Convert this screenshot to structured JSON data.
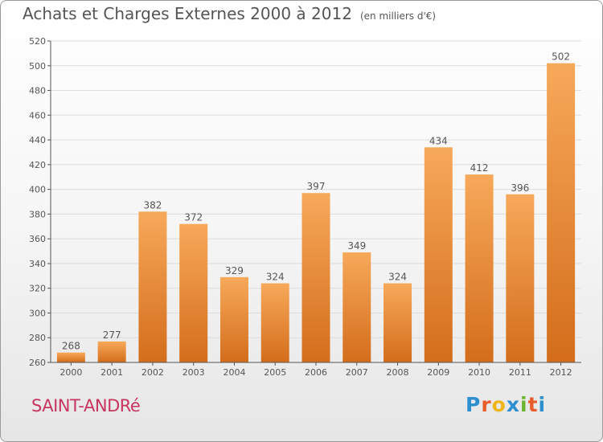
{
  "header": {
    "title": "Achats et Charges Externes 2000 à 2012",
    "unit": "(en milliers d'€)"
  },
  "footer": {
    "commune": "SAINT-ANDRé",
    "logo_text": "Proxiti",
    "logo_colors": [
      "#2e8fd0",
      "#e85c2c",
      "#f1b51c",
      "#2e8fd0",
      "#6bb52e",
      "#e85c2c",
      "#2e8fd0"
    ]
  },
  "colors": {
    "bar_top": "#f7a95a",
    "bar_bottom": "#d36d1b",
    "grid": "#dcdcdc",
    "axis": "#555555",
    "text": "#555555",
    "commune": "#c8355f"
  },
  "chart_data": {
    "type": "bar",
    "title": "Achats et Charges Externes 2000 à 2012",
    "subtitle": "(en milliers d'€)",
    "xlabel": "",
    "ylabel": "",
    "categories": [
      "2000",
      "2001",
      "2002",
      "2003",
      "2004",
      "2005",
      "2006",
      "2007",
      "2008",
      "2009",
      "2010",
      "2011",
      "2012"
    ],
    "values": [
      268,
      277,
      382,
      372,
      329,
      324,
      397,
      349,
      324,
      434,
      412,
      396,
      502
    ],
    "ylim": [
      260,
      520
    ],
    "yticks": [
      260,
      280,
      300,
      320,
      340,
      360,
      380,
      400,
      420,
      440,
      460,
      480,
      500,
      520
    ],
    "grid": true,
    "data_labels": true
  }
}
